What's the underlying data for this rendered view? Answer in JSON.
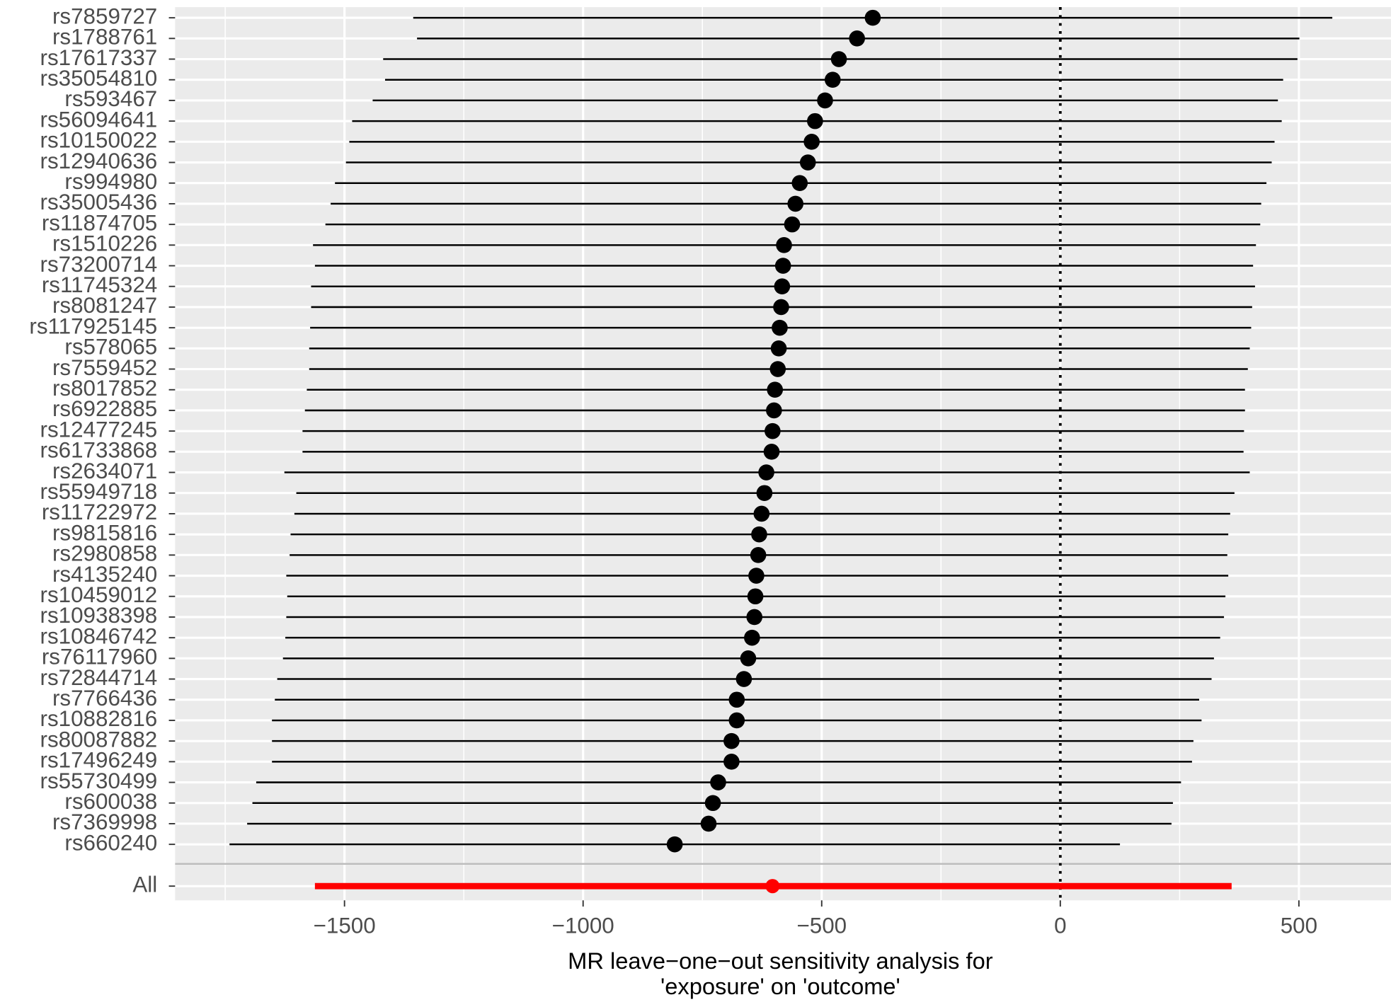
{
  "chart_data": {
    "type": "forest",
    "xlabel": [
      "MR leave−one−out sensitivity analysis for",
      "'exposure' on 'outcome'"
    ],
    "categories": [
      "rs7859727",
      "rs1788761",
      "rs17617337",
      "rs35054810",
      "rs593467",
      "rs56094641",
      "rs10150022",
      "rs12940636",
      "rs994980",
      "rs35005436",
      "rs11874705",
      "rs1510226",
      "rs73200714",
      "rs11745324",
      "rs8081247",
      "rs117925145",
      "rs578065",
      "rs7559452",
      "rs8017852",
      "rs6922885",
      "rs12477245",
      "rs61733868",
      "rs2634071",
      "rs55949718",
      "rs11722972",
      "rs9815816",
      "rs2980858",
      "rs4135240",
      "rs10459012",
      "rs10938398",
      "rs10846742",
      "rs76117960",
      "rs72844714",
      "rs7766436",
      "rs10882816",
      "rs80087882",
      "rs17496249",
      "rs55730499",
      "rs600038",
      "rs7369998",
      "rs660240",
      "All"
    ],
    "values": [
      -393,
      -426,
      -464,
      -477,
      -493,
      -514,
      -521,
      -529,
      -546,
      -555,
      -562,
      -579,
      -581,
      -583,
      -585,
      -588,
      -590,
      -592,
      -598,
      -600,
      -603,
      -605,
      -616,
      -620,
      -626,
      -631,
      -633,
      -637,
      -639,
      -641,
      -646,
      -654,
      -663,
      -678,
      -678,
      -689,
      -689,
      -717,
      -728,
      -737,
      -808,
      -603
    ],
    "lower": [
      -1356,
      -1348,
      -1419,
      -1415,
      -1441,
      -1484,
      -1490,
      -1497,
      -1520,
      -1529,
      -1540,
      -1566,
      -1562,
      -1570,
      -1570,
      -1572,
      -1574,
      -1574,
      -1579,
      -1583,
      -1588,
      -1588,
      -1626,
      -1601,
      -1605,
      -1613,
      -1615,
      -1622,
      -1620,
      -1622,
      -1624,
      -1629,
      -1641,
      -1646,
      -1652,
      -1652,
      -1652,
      -1685,
      -1693,
      -1704,
      -1741,
      -1562
    ],
    "upper": [
      570,
      501,
      497,
      467,
      456,
      464,
      449,
      443,
      432,
      421,
      419,
      410,
      404,
      408,
      402,
      400,
      397,
      393,
      387,
      387,
      385,
      384,
      397,
      365,
      356,
      352,
      350,
      352,
      346,
      343,
      335,
      322,
      317,
      291,
      296,
      279,
      276,
      253,
      236,
      233,
      125,
      359
    ],
    "color": "#000000",
    "summary_color": "#ff0000",
    "reference_line": 0,
    "xlim": [
      -1855,
      693
    ],
    "xticks": [
      {
        "value": -1500,
        "label": "−1500"
      },
      {
        "value": -1000,
        "label": "−1000"
      },
      {
        "value": -500,
        "label": "−500"
      },
      0,
      500
    ],
    "grid": true
  }
}
